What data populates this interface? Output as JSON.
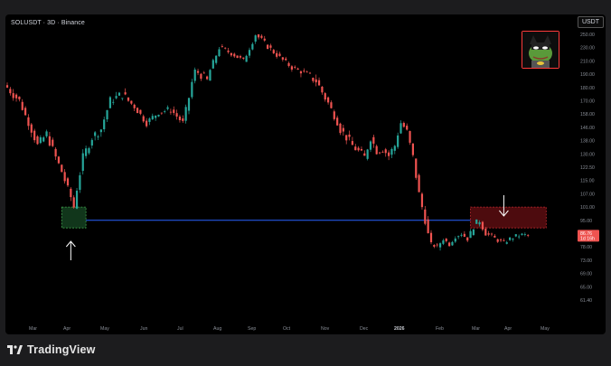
{
  "chart_data": {
    "type": "candlestick",
    "symbol_label": "SOLUSDT · 3D · Binance",
    "currency_label": "USDT",
    "y_ticks": [
      "250.00",
      "230.00",
      "210.00",
      "190.00",
      "180.00",
      "170.00",
      "158.00",
      "146.00",
      "138.00",
      "130.00",
      "122.50",
      "115.00",
      "107.00",
      "101.00",
      "95.00",
      "88.00",
      "78.00",
      "73.00",
      "69.00",
      "65.00",
      "61.40"
    ],
    "x_ticks": [
      "Mar",
      "Apr",
      "May",
      "Jun",
      "Jul",
      "Aug",
      "Sep",
      "Oct",
      "Nov",
      "Dec",
      "2026",
      "Feb",
      "Mar",
      "Apr",
      "May"
    ],
    "bold_x_tick": "2026",
    "price_labels": [
      "86.76",
      "1d 16h"
    ],
    "horizontal_line_price": 95.0,
    "support_box": {
      "start_bar": 18,
      "end_bar": 26
    },
    "resistance_box": {
      "start_bar": 153,
      "end_bar": 178
    },
    "arrows": [
      {
        "direction": "up",
        "bar": 21
      },
      {
        "direction": "down",
        "bar": 164
      }
    ],
    "close_path": [
      [
        0,
        180
      ],
      [
        4,
        170
      ],
      [
        7,
        150
      ],
      [
        10,
        135
      ],
      [
        13,
        142
      ],
      [
        16,
        128
      ],
      [
        18,
        120
      ],
      [
        20,
        110
      ],
      [
        22,
        101
      ],
      [
        25,
        128
      ],
      [
        28,
        140
      ],
      [
        31,
        145
      ],
      [
        34,
        170
      ],
      [
        38,
        175
      ],
      [
        42,
        165
      ],
      [
        46,
        150
      ],
      [
        50,
        160
      ],
      [
        54,
        162
      ],
      [
        58,
        150
      ],
      [
        62,
        195
      ],
      [
        66,
        185
      ],
      [
        70,
        230
      ],
      [
        74,
        222
      ],
      [
        78,
        210
      ],
      [
        82,
        250
      ],
      [
        86,
        232
      ],
      [
        90,
        215
      ],
      [
        94,
        200
      ],
      [
        98,
        192
      ],
      [
        102,
        185
      ],
      [
        106,
        168
      ],
      [
        110,
        145
      ],
      [
        114,
        135
      ],
      [
        118,
        128
      ],
      [
        120,
        140
      ],
      [
        122,
        132
      ],
      [
        124,
        133
      ],
      [
        126,
        129
      ],
      [
        128,
        135
      ],
      [
        130,
        150
      ],
      [
        132,
        143
      ],
      [
        134,
        128
      ],
      [
        136,
        107
      ],
      [
        138,
        95
      ],
      [
        140,
        80
      ],
      [
        142,
        78
      ],
      [
        144,
        84
      ],
      [
        146,
        80
      ],
      [
        148,
        86
      ],
      [
        150,
        88
      ],
      [
        152,
        84
      ],
      [
        154,
        92
      ],
      [
        156,
        95
      ],
      [
        158,
        88
      ],
      [
        160,
        86
      ],
      [
        162,
        83
      ],
      [
        164,
        81
      ],
      [
        166,
        84
      ],
      [
        168,
        86
      ],
      [
        170,
        87
      ],
      [
        172,
        86.76
      ]
    ]
  },
  "brand": {
    "name": "TradingView"
  },
  "icons": {
    "avatar": "pepe-batman-avatar-icon",
    "logo": "tradingview-logo-icon"
  },
  "colors": {
    "up": "#26a69a",
    "down": "#ef5350",
    "line": "#2962ff",
    "bg": "#000000"
  }
}
